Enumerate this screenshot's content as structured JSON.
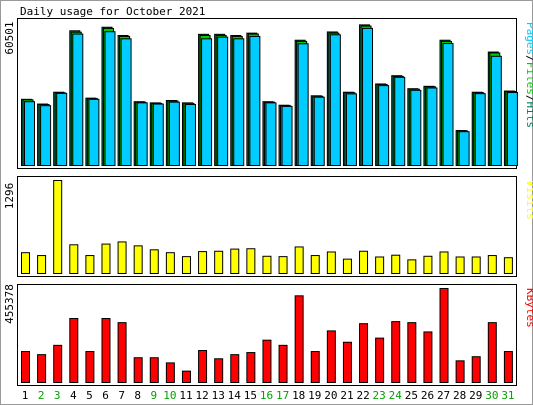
{
  "chart_data": [
    {
      "type": "bar",
      "title": "Daily usage for October 2021",
      "categories": [
        "1",
        "2",
        "3",
        "4",
        "5",
        "6",
        "7",
        "8",
        "9",
        "10",
        "11",
        "12",
        "13",
        "14",
        "15",
        "16",
        "17",
        "18",
        "19",
        "20",
        "21",
        "22",
        "23",
        "24",
        "25",
        "26",
        "27",
        "28",
        "29",
        "30",
        "31"
      ],
      "weekend_days": [
        "2",
        "3",
        "9",
        "10",
        "16",
        "17",
        "23",
        "24",
        "30",
        "31"
      ],
      "ymax_label": "60501",
      "ylim": [
        0,
        60501
      ],
      "ylabel_parts": [
        "Pages",
        "Files",
        "Hits"
      ],
      "series": [
        {
          "name": "Hits",
          "color": "#00805c",
          "values": [
            28000,
            26000,
            31000,
            57000,
            28500,
            58500,
            55000,
            27000,
            26500,
            27500,
            26500,
            55500,
            55500,
            55000,
            56000,
            27000,
            25500,
            53000,
            29500,
            56500,
            31000,
            59500,
            34500,
            38000,
            32500,
            33500,
            53000,
            14800,
            31000,
            48000,
            31500
          ]
        },
        {
          "name": "Files",
          "color": "#00cc00",
          "values": [
            27800,
            25800,
            30800,
            56400,
            28300,
            58000,
            54600,
            26800,
            26300,
            27300,
            26300,
            55000,
            55000,
            54600,
            55600,
            26800,
            25300,
            52500,
            29300,
            56000,
            30800,
            59000,
            34300,
            37700,
            32300,
            33300,
            52500,
            14600,
            30800,
            47600,
            31300
          ]
        },
        {
          "name": "Pages",
          "color": "#00ccff",
          "values": [
            27000,
            25300,
            30500,
            55600,
            28000,
            56600,
            53600,
            26500,
            26000,
            26800,
            25800,
            53600,
            54300,
            53600,
            54600,
            26500,
            25000,
            51500,
            28900,
            55300,
            30300,
            58000,
            33800,
            37300,
            31800,
            32800,
            51600,
            14300,
            30400,
            46200,
            30900
          ]
        }
      ]
    },
    {
      "type": "bar",
      "ymax_label": "1296",
      "ylim": [
        0,
        1296
      ],
      "ylabel": "Visits",
      "series": [
        {
          "name": "Visits",
          "color": "#ffff00",
          "values": [
            290,
            250,
            1296,
            400,
            250,
            410,
            440,
            385,
            330,
            290,
            235,
            305,
            310,
            340,
            345,
            240,
            235,
            370,
            250,
            300,
            200,
            310,
            230,
            255,
            190,
            240,
            300,
            230,
            230,
            250,
            220
          ]
        }
      ]
    },
    {
      "type": "bar",
      "ymax_label": "455378",
      "ylim": [
        0,
        455378
      ],
      "ylabel": "KBytes",
      "series": [
        {
          "name": "KBytes",
          "color": "#ff0000",
          "values": [
            150000,
            135000,
            180000,
            310000,
            150000,
            310000,
            290000,
            120000,
            120000,
            95000,
            55000,
            155000,
            115000,
            135000,
            145000,
            205000,
            180000,
            420000,
            150000,
            250000,
            195000,
            285000,
            215000,
            295000,
            290000,
            245000,
            455378,
            105000,
            125000,
            290000,
            150000
          ]
        }
      ]
    }
  ]
}
